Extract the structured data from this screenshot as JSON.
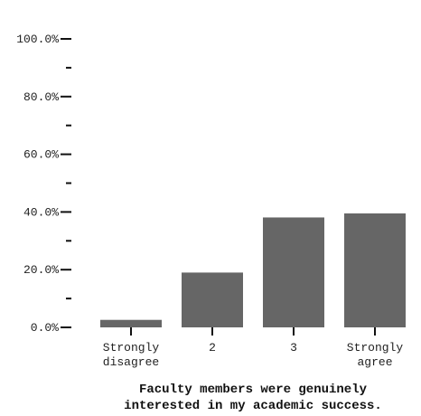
{
  "chart_data": {
    "type": "bar",
    "categories": [
      [
        "Strongly",
        "disagree"
      ],
      [
        "2"
      ],
      [
        "3"
      ],
      [
        "Strongly",
        "agree"
      ]
    ],
    "values": [
      2.6,
      19.0,
      38.1,
      39.5
    ],
    "value_unit": "percent",
    "title": "",
    "xlabel": [
      "Faculty members were genuinely",
      "interested in my academic success."
    ],
    "ylabel": "",
    "ylim": [
      0,
      100
    ],
    "y_major_ticks": [
      "0.0%",
      "20.0%",
      "40.0%",
      "60.0%",
      "80.0%",
      "100.0%"
    ],
    "y_major_values": [
      0,
      20,
      40,
      60,
      80,
      100
    ],
    "y_minor_values": [
      10,
      30,
      50,
      70,
      90
    ],
    "grid": false,
    "legend": "none",
    "bar_color": "#666666",
    "axis_color": "#111111"
  }
}
